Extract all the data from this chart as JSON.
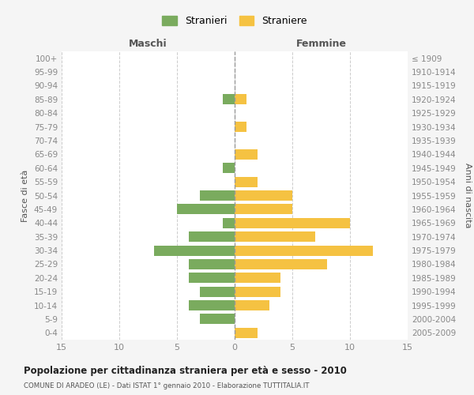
{
  "age_groups": [
    "0-4",
    "5-9",
    "10-14",
    "15-19",
    "20-24",
    "25-29",
    "30-34",
    "35-39",
    "40-44",
    "45-49",
    "50-54",
    "55-59",
    "60-64",
    "65-69",
    "70-74",
    "75-79",
    "80-84",
    "85-89",
    "90-94",
    "95-99",
    "100+"
  ],
  "birth_years": [
    "2005-2009",
    "2000-2004",
    "1995-1999",
    "1990-1994",
    "1985-1989",
    "1980-1984",
    "1975-1979",
    "1970-1974",
    "1965-1969",
    "1960-1964",
    "1955-1959",
    "1950-1954",
    "1945-1949",
    "1940-1944",
    "1935-1939",
    "1930-1934",
    "1925-1929",
    "1920-1924",
    "1915-1919",
    "1910-1914",
    "≤ 1909"
  ],
  "maschi": [
    0,
    3,
    4,
    3,
    4,
    4,
    7,
    4,
    1,
    5,
    3,
    0,
    1,
    0,
    0,
    0,
    0,
    1,
    0,
    0,
    0
  ],
  "femmine": [
    2,
    0,
    3,
    4,
    4,
    8,
    12,
    7,
    10,
    5,
    5,
    2,
    0,
    2,
    0,
    1,
    0,
    1,
    0,
    0,
    0
  ],
  "color_maschi": "#7aab5e",
  "color_femmine": "#f5c242",
  "title": "Popolazione per cittadinanza straniera per età e sesso - 2010",
  "subtitle": "COMUNE DI ARADEO (LE) - Dati ISTAT 1° gennaio 2010 - Elaborazione TUTTITALIA.IT",
  "xlabel_left": "Maschi",
  "xlabel_right": "Femmine",
  "ylabel_left": "Fasce di età",
  "ylabel_right": "Anni di nascita",
  "xlim": 15,
  "legend_stranieri": "Stranieri",
  "legend_straniere": "Straniere",
  "bg_color": "#f5f5f5",
  "plot_bg_color": "#ffffff",
  "grid_color": "#cccccc",
  "tick_label_color": "#888888",
  "center_line_color": "#999999",
  "bar_height": 0.75
}
